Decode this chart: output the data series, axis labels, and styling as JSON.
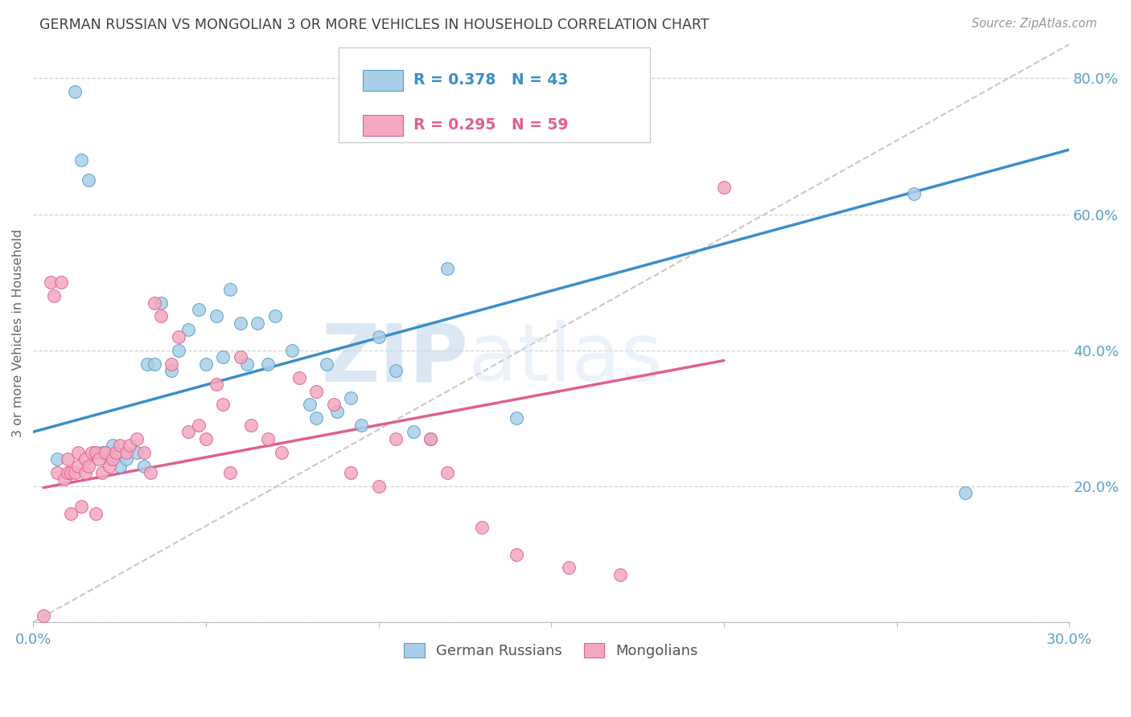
{
  "title": "GERMAN RUSSIAN VS MONGOLIAN 3 OR MORE VEHICLES IN HOUSEHOLD CORRELATION CHART",
  "source": "Source: ZipAtlas.com",
  "ylabel": "3 or more Vehicles in Household",
  "watermark_zip": "ZIP",
  "watermark_atlas": "atlas",
  "xlim": [
    0.0,
    0.3
  ],
  "ylim": [
    0.0,
    0.85
  ],
  "x_ticks": [
    0.0,
    0.05,
    0.1,
    0.15,
    0.2,
    0.25,
    0.3
  ],
  "y_ticks": [
    0.0,
    0.2,
    0.4,
    0.6,
    0.8
  ],
  "x_tick_labels": [
    "0.0%",
    "",
    "",
    "",
    "",
    "",
    "30.0%"
  ],
  "y_tick_labels": [
    "",
    "20.0%",
    "40.0%",
    "60.0%",
    "80.0%"
  ],
  "blue_R": 0.378,
  "blue_N": 43,
  "pink_R": 0.295,
  "pink_N": 59,
  "blue_color": "#a8cfe8",
  "pink_color": "#f4a8c0",
  "blue_edge_color": "#5b9ec9",
  "pink_edge_color": "#e06090",
  "blue_line_color": "#3a8fc7",
  "pink_line_color": "#e06090",
  "diag_line_color": "#c8c8c8",
  "grid_color": "#d0d0d0",
  "axis_tick_color": "#5b9ec9",
  "title_color": "#404040",
  "legend_blue_color": "#3a8fc7",
  "legend_pink_color": "#e06090",
  "blue_scatter_x": [
    0.007,
    0.012,
    0.014,
    0.016,
    0.018,
    0.02,
    0.022,
    0.023,
    0.025,
    0.027,
    0.03,
    0.032,
    0.033,
    0.035,
    0.037,
    0.04,
    0.042,
    0.045,
    0.048,
    0.05,
    0.053,
    0.055,
    0.057,
    0.06,
    0.062,
    0.065,
    0.068,
    0.07,
    0.075,
    0.08,
    0.082,
    0.085,
    0.088,
    0.092,
    0.095,
    0.1,
    0.105,
    0.11,
    0.115,
    0.12,
    0.14,
    0.255,
    0.27
  ],
  "blue_scatter_y": [
    0.24,
    0.78,
    0.68,
    0.65,
    0.25,
    0.25,
    0.24,
    0.26,
    0.23,
    0.24,
    0.25,
    0.23,
    0.38,
    0.38,
    0.47,
    0.37,
    0.4,
    0.43,
    0.46,
    0.38,
    0.45,
    0.39,
    0.49,
    0.44,
    0.38,
    0.44,
    0.38,
    0.45,
    0.4,
    0.32,
    0.3,
    0.38,
    0.31,
    0.33,
    0.29,
    0.42,
    0.37,
    0.28,
    0.27,
    0.52,
    0.3,
    0.63,
    0.19
  ],
  "pink_scatter_x": [
    0.003,
    0.005,
    0.006,
    0.007,
    0.008,
    0.009,
    0.01,
    0.01,
    0.011,
    0.011,
    0.012,
    0.013,
    0.013,
    0.014,
    0.015,
    0.015,
    0.016,
    0.017,
    0.018,
    0.018,
    0.019,
    0.02,
    0.021,
    0.022,
    0.023,
    0.024,
    0.025,
    0.027,
    0.028,
    0.03,
    0.032,
    0.034,
    0.035,
    0.037,
    0.04,
    0.042,
    0.045,
    0.048,
    0.05,
    0.053,
    0.055,
    0.057,
    0.06,
    0.063,
    0.068,
    0.072,
    0.077,
    0.082,
    0.087,
    0.092,
    0.1,
    0.105,
    0.115,
    0.12,
    0.13,
    0.14,
    0.155,
    0.17,
    0.2
  ],
  "pink_scatter_y": [
    0.01,
    0.5,
    0.48,
    0.22,
    0.5,
    0.21,
    0.22,
    0.24,
    0.16,
    0.22,
    0.22,
    0.23,
    0.25,
    0.17,
    0.22,
    0.24,
    0.23,
    0.25,
    0.16,
    0.25,
    0.24,
    0.22,
    0.25,
    0.23,
    0.24,
    0.25,
    0.26,
    0.25,
    0.26,
    0.27,
    0.25,
    0.22,
    0.47,
    0.45,
    0.38,
    0.42,
    0.28,
    0.29,
    0.27,
    0.35,
    0.32,
    0.22,
    0.39,
    0.29,
    0.27,
    0.25,
    0.36,
    0.34,
    0.32,
    0.22,
    0.2,
    0.27,
    0.27,
    0.22,
    0.14,
    0.1,
    0.08,
    0.07,
    0.64
  ],
  "blue_line_x": [
    0.0,
    0.3
  ],
  "blue_line_y": [
    0.28,
    0.695
  ],
  "pink_line_x": [
    0.003,
    0.2
  ],
  "pink_line_y": [
    0.198,
    0.385
  ],
  "diag_line_x": [
    0.0,
    0.3
  ],
  "diag_line_y": [
    0.0,
    0.85
  ]
}
